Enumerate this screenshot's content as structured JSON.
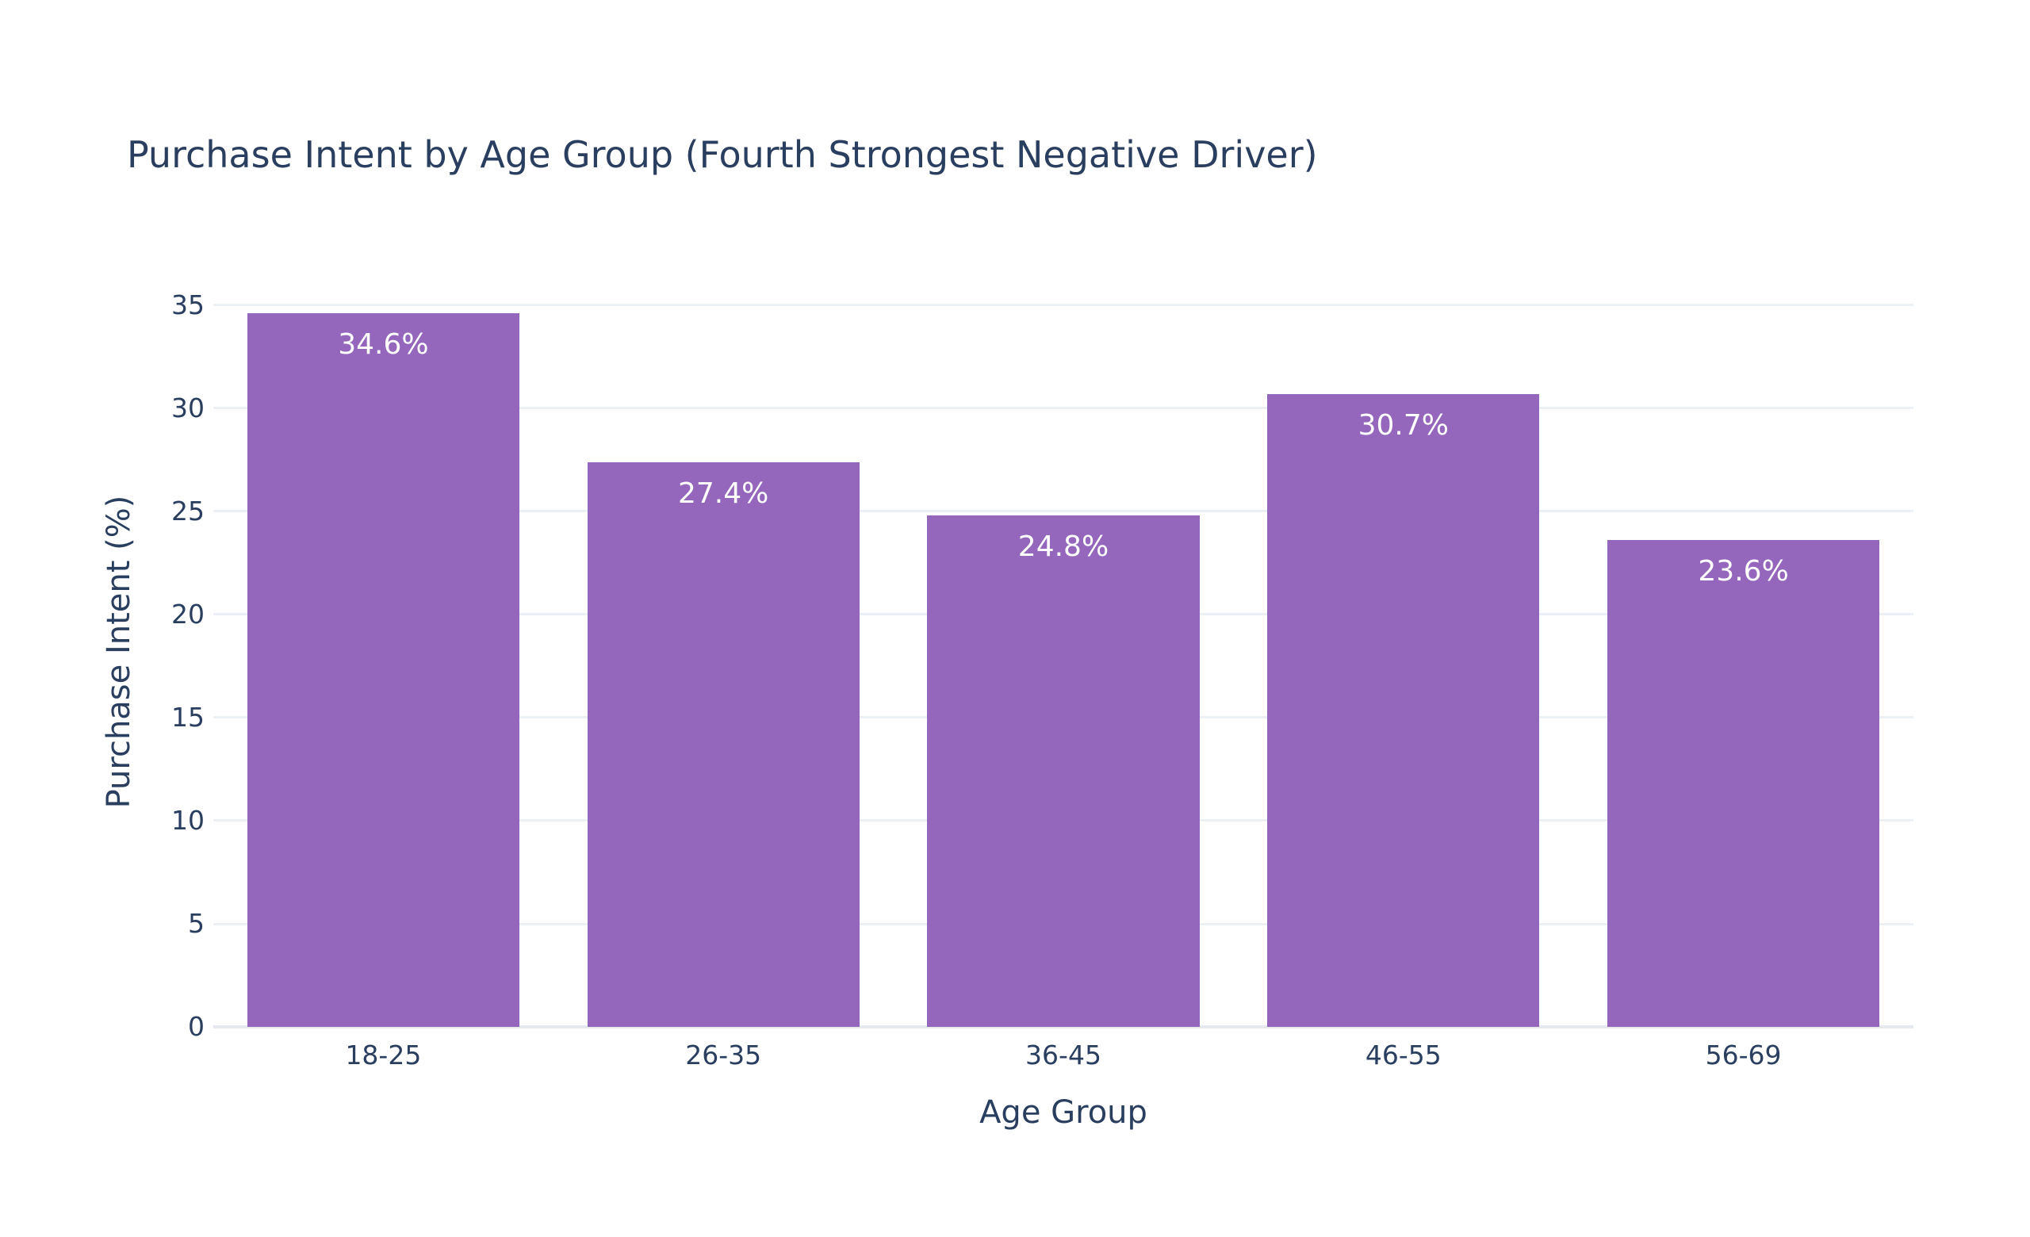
{
  "chart_data": {
    "type": "bar",
    "title": "Purchase Intent by Age Group (Fourth Strongest Negative Driver)",
    "xlabel": "Age Group",
    "ylabel": "Purchase Intent (%)",
    "categories": [
      "18-25",
      "26-35",
      "36-45",
      "46-55",
      "56-69"
    ],
    "values": [
      34.6,
      27.4,
      24.8,
      30.7,
      23.6
    ],
    "bar_labels": [
      "34.6%",
      "27.4%",
      "24.8%",
      "30.7%",
      "23.6%"
    ],
    "yticks": [
      0,
      5,
      10,
      15,
      20,
      25,
      30,
      35
    ],
    "ylim": [
      0,
      36.42
    ],
    "grid": true,
    "legend": false,
    "bar_label_position": "inside-top",
    "colors": {
      "bar": "#9467bd",
      "text": "#2a3f5f",
      "bar_label": "#ffffff",
      "gridline": "#ebeff6",
      "zeroline": "#e6eaf0",
      "background": "#ffffff"
    }
  }
}
